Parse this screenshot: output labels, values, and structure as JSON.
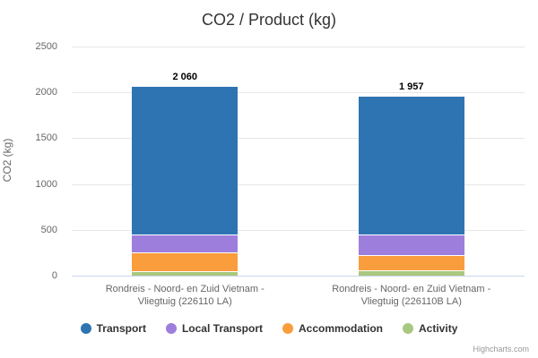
{
  "chart_data": {
    "type": "bar",
    "stacked": true,
    "title": "CO2 / Product (kg)",
    "xlabel": "",
    "ylabel": "CO2 (kg)",
    "ylim": [
      0,
      2500
    ],
    "yticks": [
      0,
      500,
      1000,
      1500,
      2000,
      2500
    ],
    "ytick_labels": [
      "0",
      "500",
      "1000",
      "1500",
      "2000",
      "2500"
    ],
    "grid": true,
    "legend_position": "bottom",
    "categories": [
      "Rondreis - Noord- en Zuid Vietnam - Vliegtuig (226110 LA)",
      "Rondreis - Noord- en Zuid Vietnam - Vliegtuig (226110B LA)"
    ],
    "series": [
      {
        "name": "Transport",
        "color": "#2f74b2",
        "values": [
          1610,
          1512
        ]
      },
      {
        "name": "Local Transport",
        "color": "#9d7edd",
        "values": [
          200,
          220
        ]
      },
      {
        "name": "Accommodation",
        "color": "#fa9d3c",
        "values": [
          200,
          170
        ]
      },
      {
        "name": "Activity",
        "color": "#a9c87f",
        "values": [
          50,
          55
        ]
      }
    ],
    "stack_totals": [
      2060,
      1957
    ],
    "stack_total_labels": [
      "2 060",
      "1 957"
    ],
    "credit": "Highcharts.com"
  },
  "colors": {
    "title": "#333333",
    "axis_text": "#666666",
    "gridline": "#e6e6e6",
    "axis_line": "#ccd6eb",
    "data_label": "#000000",
    "legend_text": "#333333",
    "credit": "#999999",
    "background": "#ffffff"
  }
}
